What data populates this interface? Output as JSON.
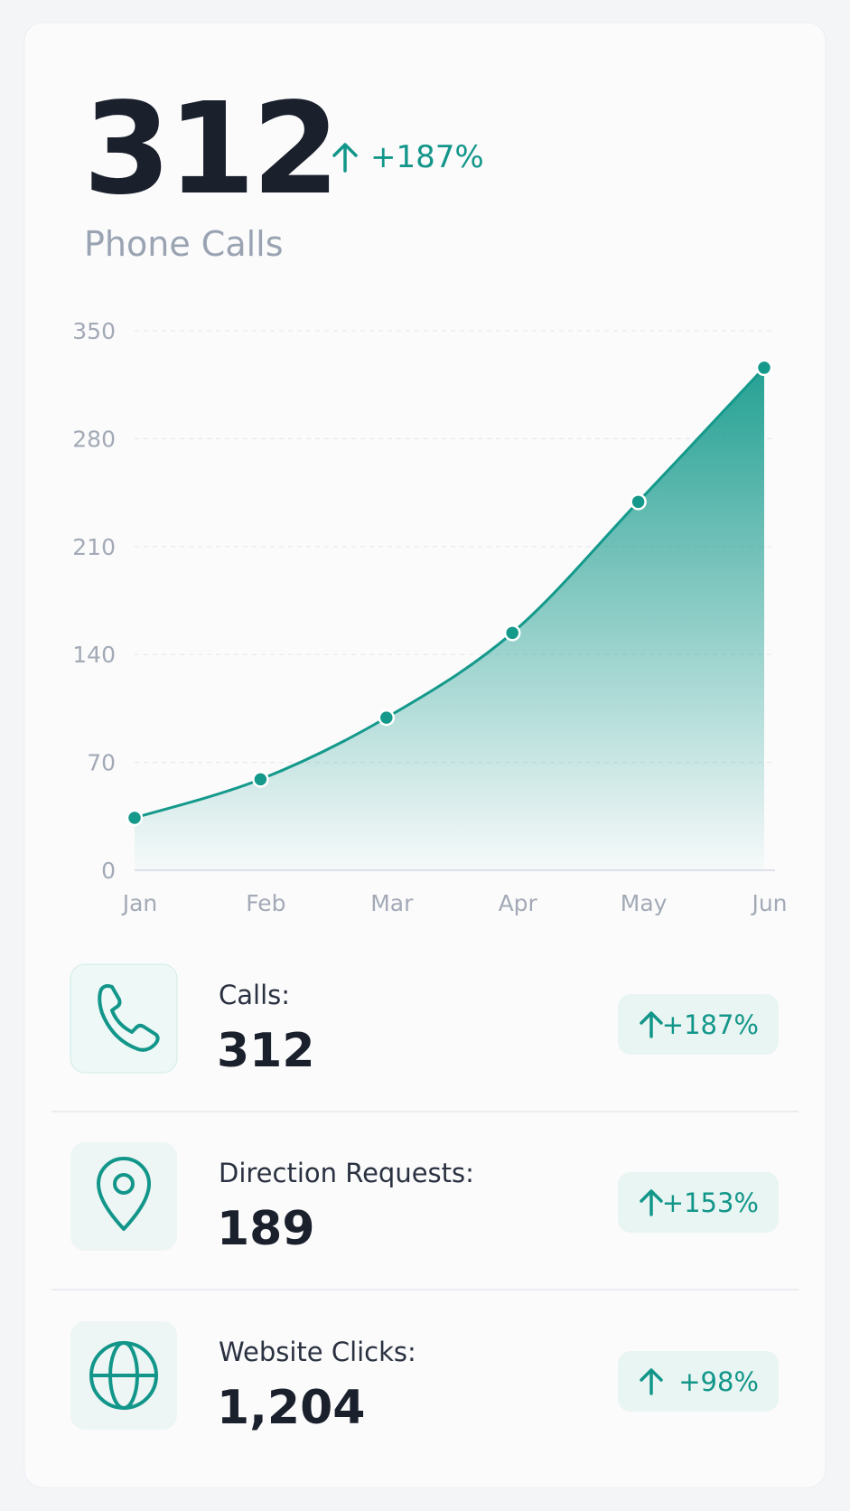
{
  "header": {
    "value": "312",
    "change": "+187%",
    "label": "Phone Calls"
  },
  "chart_data": {
    "type": "line",
    "categories": [
      "Jan",
      "Feb",
      "Mar",
      "Apr",
      "May",
      "Jun"
    ],
    "series": [
      {
        "color": "#14998b",
        "values": [
          34,
          59,
          99,
          154,
          239,
          326
        ]
      }
    ],
    "ylim": [
      0,
      350
    ],
    "yticks": [
      0,
      70,
      140,
      210,
      280,
      350
    ],
    "grid": true
  },
  "metrics": [
    {
      "label": "Calls:",
      "value": "312",
      "change": "+187%"
    },
    {
      "label": "Direction Requests:",
      "value": "189",
      "change": "+153%"
    },
    {
      "label": "Website Clicks:",
      "value": "1,204",
      "change": "+98%"
    }
  ]
}
